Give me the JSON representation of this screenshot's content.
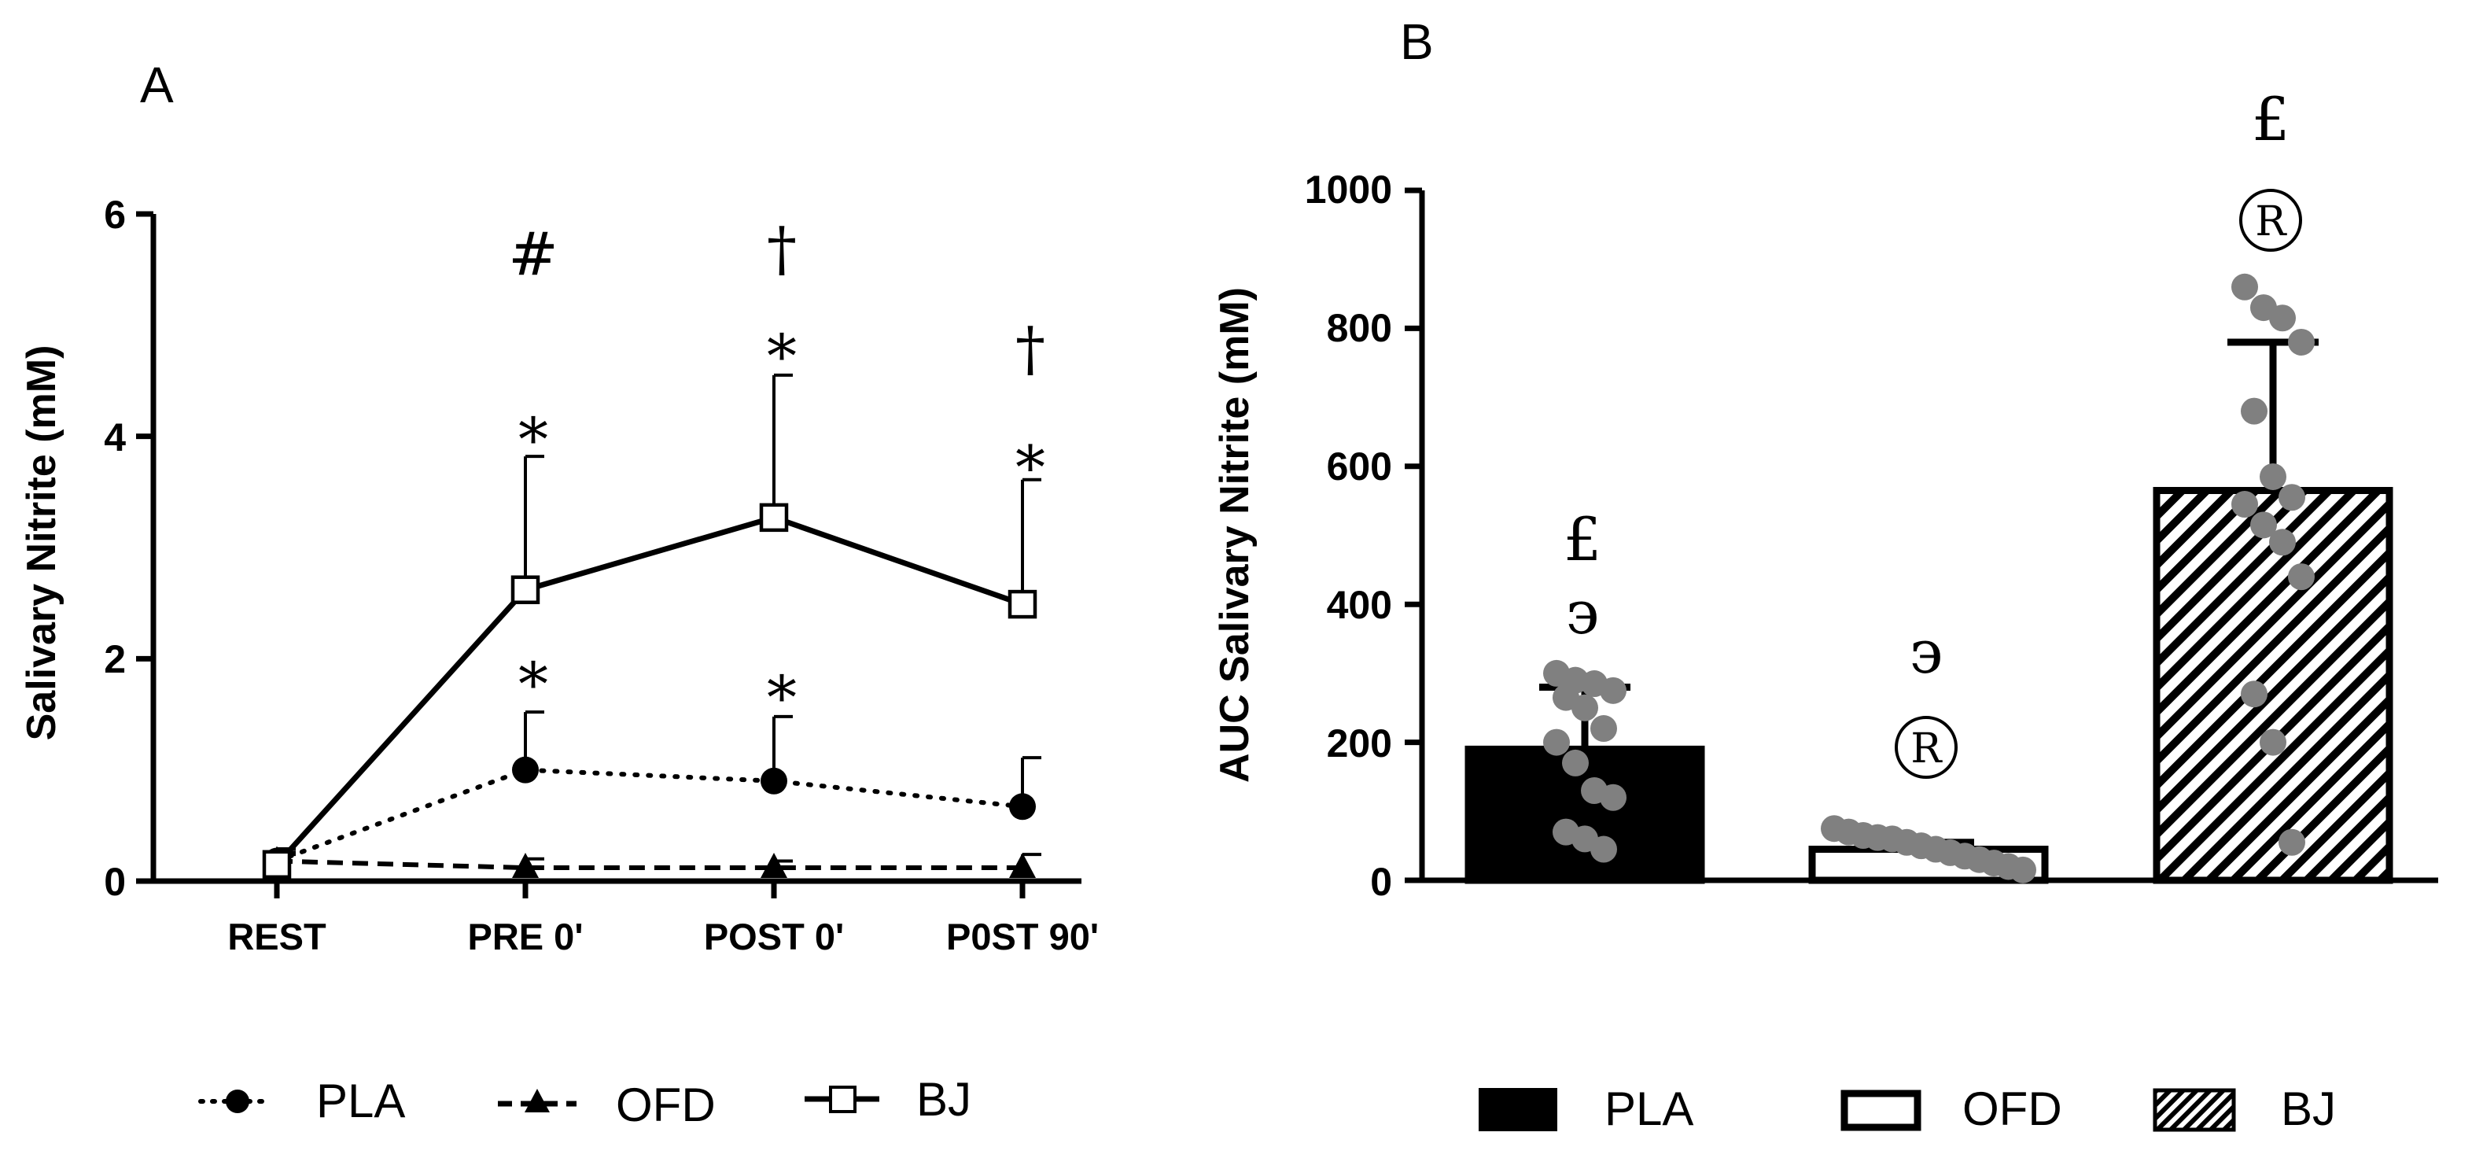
{
  "colors": {
    "axis": "#000000",
    "pla_fill": "#000000",
    "ofd_fill": "#ffffff",
    "dot": "#808080",
    "background": "#ffffff"
  },
  "chart_data": [
    {
      "panel_label": "A",
      "type": "line",
      "ylabel": "Salivary Nitrite (mM)",
      "ylim": [
        0,
        6
      ],
      "yticks": [
        "0",
        "2",
        "4",
        "6"
      ],
      "categories": [
        "REST",
        "PRE 0'",
        "POST 0'",
        "P0ST 90'"
      ],
      "series": [
        {
          "name": "PLA",
          "style": "dotted",
          "marker": "filled-circle",
          "values": [
            0.18,
            1.0,
            0.9,
            0.67
          ],
          "sd": [
            0.08,
            0.52,
            0.58,
            0.44
          ]
        },
        {
          "name": "OFD",
          "style": "dashed",
          "marker": "filled-triangle",
          "values": [
            0.18,
            0.12,
            0.12,
            0.12
          ],
          "sd": [
            0.06,
            0.08,
            0.06,
            0.12
          ]
        },
        {
          "name": "BJ",
          "style": "solid",
          "marker": "open-square",
          "values": [
            0.15,
            2.62,
            3.27,
            2.49
          ],
          "sd": [
            0.14,
            1.2,
            1.28,
            1.12
          ]
        }
      ],
      "annotations": [
        {
          "category": "PRE 0'",
          "value": 1.95,
          "text": "*"
        },
        {
          "category": "PRE 0'",
          "value": 4.15,
          "text": "*"
        },
        {
          "category": "PRE 0'",
          "value": 5.65,
          "text": "#"
        },
        {
          "category": "POST 0'",
          "value": 1.83,
          "text": "*"
        },
        {
          "category": "POST 0'",
          "value": 4.9,
          "text": "*"
        },
        {
          "category": "POST 0'",
          "value": 5.7,
          "text": "†"
        },
        {
          "category": "P0ST 90'",
          "value": 3.9,
          "text": "*"
        },
        {
          "category": "P0ST 90'",
          "value": 4.8,
          "text": "†"
        }
      ],
      "legend": [
        "PLA",
        "OFD",
        "BJ"
      ]
    },
    {
      "panel_label": "B",
      "type": "bar",
      "ylabel": "AUC Salivary Nitrite (mM)",
      "ylim": [
        0,
        1000
      ],
      "yticks": [
        "0",
        "200",
        "400",
        "600",
        "800",
        "1000"
      ],
      "categories": [
        "PLA",
        "OFD",
        "BJ"
      ],
      "fills": [
        "solid-black",
        "white",
        "hatched"
      ],
      "values": [
        190,
        45,
        565
      ],
      "sd": [
        90,
        10,
        215
      ],
      "points": [
        [
          300,
          290,
          285,
          275,
          265,
          250,
          220,
          200,
          170,
          130,
          120,
          70,
          60,
          45
        ],
        [
          75,
          70,
          65,
          62,
          60,
          55,
          50,
          45,
          40,
          35,
          30,
          25,
          20,
          15
        ],
        [
          860,
          830,
          815,
          780,
          680,
          585,
          555,
          545,
          515,
          490,
          440,
          270,
          200,
          55
        ]
      ],
      "annotations": [
        {
          "category": "PLA",
          "value": 485,
          "text": "£"
        },
        {
          "category": "PLA",
          "value": 385,
          "text": "϶"
        },
        {
          "category": "OFD",
          "value": 325,
          "text": "϶"
        },
        {
          "category": "OFD",
          "value": 195,
          "text": "®"
        },
        {
          "category": "BJ",
          "value": 955,
          "text": "£"
        },
        {
          "category": "BJ",
          "value": 955,
          "text": "®"
        }
      ],
      "legend": [
        "PLA",
        "OFD",
        "BJ"
      ]
    }
  ]
}
